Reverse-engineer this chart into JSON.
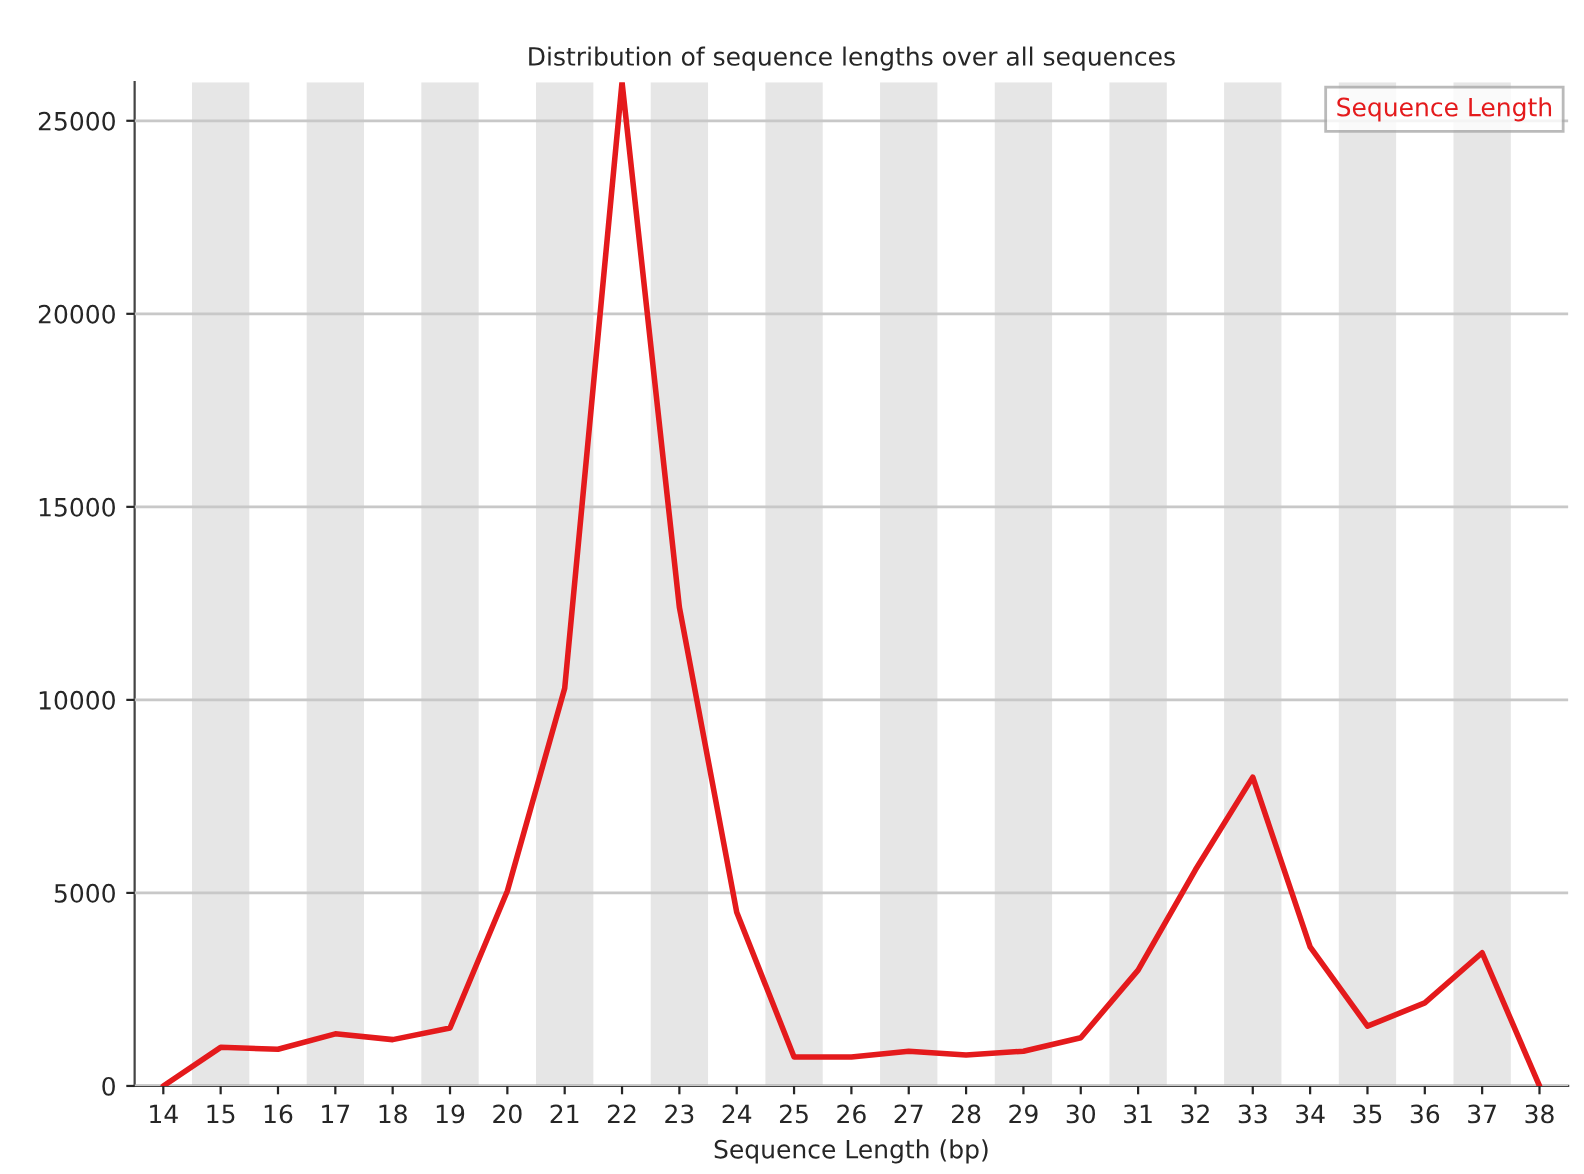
{
  "chart_data": {
    "type": "line",
    "title": "Distribution of sequence lengths over all sequences",
    "xlabel": "Sequence Length (bp)",
    "x": [
      14,
      15,
      16,
      17,
      18,
      19,
      20,
      21,
      22,
      23,
      24,
      25,
      26,
      27,
      28,
      29,
      30,
      31,
      32,
      33,
      34,
      35,
      36,
      37,
      38
    ],
    "series": [
      {
        "name": "Sequence Length",
        "color": "#e41a1c",
        "values": [
          0,
          1000,
          950,
          1350,
          1200,
          1500,
          5050,
          10300,
          26000,
          12400,
          4500,
          750,
          750,
          900,
          800,
          900,
          1250,
          3000,
          5600,
          8000,
          3600,
          1550,
          2150,
          3450,
          0
        ]
      }
    ],
    "xlim": [
      13.5,
      38.5
    ],
    "xticks": [
      14,
      15,
      16,
      17,
      18,
      19,
      20,
      21,
      22,
      23,
      24,
      25,
      26,
      27,
      28,
      29,
      30,
      31,
      32,
      33,
      34,
      35,
      36,
      37,
      38
    ],
    "ylim": [
      0,
      26000
    ],
    "yticks": [
      0,
      5000,
      10000,
      15000,
      20000,
      25000
    ],
    "bands": [
      {
        "axis": "x",
        "from": 14.5,
        "to": 15.5,
        "color": "#e6e6e6"
      },
      {
        "axis": "x",
        "from": 16.5,
        "to": 17.5,
        "color": "#e6e6e6"
      },
      {
        "axis": "x",
        "from": 18.5,
        "to": 19.5,
        "color": "#e6e6e6"
      },
      {
        "axis": "x",
        "from": 20.5,
        "to": 21.5,
        "color": "#e6e6e6"
      },
      {
        "axis": "x",
        "from": 22.5,
        "to": 23.5,
        "color": "#e6e6e6"
      },
      {
        "axis": "x",
        "from": 24.5,
        "to": 25.5,
        "color": "#e6e6e6"
      },
      {
        "axis": "x",
        "from": 26.5,
        "to": 27.5,
        "color": "#e6e6e6"
      },
      {
        "axis": "x",
        "from": 28.5,
        "to": 29.5,
        "color": "#e6e6e6"
      },
      {
        "axis": "x",
        "from": 30.5,
        "to": 31.5,
        "color": "#e6e6e6"
      },
      {
        "axis": "x",
        "from": 32.5,
        "to": 33.5,
        "color": "#e6e6e6"
      },
      {
        "axis": "x",
        "from": 34.5,
        "to": 35.5,
        "color": "#e6e6e6"
      },
      {
        "axis": "x",
        "from": 36.5,
        "to": 37.5,
        "color": "#e6e6e6"
      }
    ],
    "grid": "y",
    "legend": "top right",
    "marker": "none",
    "line_style": "solid"
  }
}
